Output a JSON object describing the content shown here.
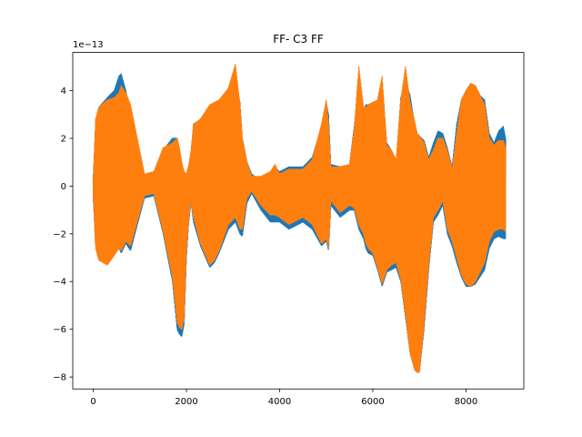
{
  "chart_data": {
    "type": "line",
    "title": "FF- C3 FF",
    "xlabel": "",
    "ylabel": "",
    "y_offset_label": "1e−13",
    "xlim": [
      -440,
      9240
    ],
    "ylim": [
      -8.5,
      5.6
    ],
    "x_ticks": [
      0,
      2000,
      4000,
      6000,
      8000
    ],
    "x_tick_labels": [
      "0",
      "2000",
      "4000",
      "6000",
      "8000"
    ],
    "y_ticks": [
      -8,
      -6,
      -4,
      -2,
      0,
      2,
      4
    ],
    "y_tick_labels": [
      "−8",
      "−6",
      "−4",
      "−2",
      "0",
      "2",
      "4"
    ],
    "grid": false,
    "legend": "none",
    "series": [
      {
        "color": "#1f77b4",
        "envelope": {
          "x": [
            0,
            50,
            120,
            300,
            450,
            550,
            600,
            700,
            800,
            1100,
            1300,
            1500,
            1700,
            1800,
            1850,
            1900,
            1950,
            2000,
            2050,
            2100,
            2150,
            2300,
            2500,
            2600,
            2700,
            2900,
            3050,
            3150,
            3200,
            3300,
            3400,
            3600,
            3800,
            3900,
            4000,
            4200,
            4500,
            4700,
            4900,
            5000,
            5050,
            5100,
            5300,
            5500,
            5600,
            5700,
            5800,
            5850,
            5900,
            6000,
            6100,
            6200,
            6300,
            6400,
            6500,
            6600,
            6700,
            6800,
            6900,
            6950,
            7000,
            7100,
            7200,
            7300,
            7400,
            7500,
            7600,
            7700,
            7800,
            7900,
            8000,
            8100,
            8200,
            8300,
            8400,
            8500,
            8600,
            8700,
            8800,
            8850
          ],
          "upper": [
            0.5,
            2.5,
            3.3,
            3.7,
            4.0,
            4.6,
            4.7,
            4.0,
            3.0,
            0.5,
            0.5,
            1.5,
            2.0,
            2.0,
            1.5,
            0.8,
            0.5,
            0.5,
            0.8,
            1.5,
            2.5,
            2.8,
            3.3,
            3.4,
            3.5,
            4.0,
            4.5,
            3.5,
            2.0,
            1.0,
            0.5,
            0.2,
            0.5,
            0.8,
            0.6,
            0.8,
            0.8,
            1.2,
            2.5,
            3.5,
            3.0,
            0.9,
            0.8,
            0.9,
            2.5,
            4.3,
            3.2,
            3.4,
            3.4,
            3.5,
            3.6,
            4.3,
            1.8,
            1.5,
            1.0,
            3.7,
            4.4,
            3.8,
            2.6,
            2.2,
            2.1,
            1.9,
            1.2,
            1.8,
            2.3,
            2.2,
            1.6,
            0.8,
            2.6,
            3.6,
            4.0,
            4.3,
            4.2,
            3.8,
            3.6,
            2.2,
            1.8,
            2.3,
            2.5,
            2.0
          ],
          "lower": [
            -0.5,
            -2.4,
            -3.0,
            -3.2,
            -2.8,
            -2.6,
            -2.8,
            -2.4,
            -2.7,
            -0.5,
            -0.4,
            -2.0,
            -4.0,
            -6.0,
            -6.2,
            -6.3,
            -5.8,
            -3.0,
            -1.5,
            -0.7,
            -1.5,
            -2.5,
            -3.4,
            -3.2,
            -2.8,
            -1.8,
            -1.5,
            -2.0,
            -2.1,
            -0.7,
            -0.3,
            -1.0,
            -1.5,
            -1.5,
            -1.5,
            -1.8,
            -1.5,
            -1.8,
            -2.5,
            -2.3,
            -2.7,
            -0.8,
            -1.3,
            -1.0,
            -1.0,
            -1.8,
            -2.2,
            -2.6,
            -2.8,
            -2.9,
            -3.5,
            -4.2,
            -3.6,
            -3.5,
            -3.4,
            -4.0,
            -5.5,
            -7.0,
            -7.7,
            -7.8,
            -7.8,
            -6.0,
            -3.5,
            -1.5,
            -1.2,
            -0.8,
            -2.0,
            -2.5,
            -3.2,
            -3.8,
            -4.2,
            -4.2,
            -4.1,
            -3.8,
            -3.5,
            -2.6,
            -2.2,
            -2.1,
            -2.2,
            -2.2
          ]
        }
      },
      {
        "color": "#ff7f0e",
        "envelope": {
          "x": [
            0,
            50,
            120,
            300,
            450,
            550,
            600,
            700,
            800,
            1100,
            1300,
            1500,
            1700,
            1800,
            1850,
            1900,
            1950,
            2000,
            2050,
            2100,
            2150,
            2300,
            2500,
            2600,
            2700,
            2900,
            3050,
            3150,
            3200,
            3300,
            3400,
            3600,
            3800,
            3900,
            4000,
            4200,
            4500,
            4700,
            4900,
            5000,
            5050,
            5100,
            5300,
            5500,
            5600,
            5700,
            5800,
            5850,
            5900,
            6000,
            6100,
            6200,
            6300,
            6400,
            6500,
            6600,
            6700,
            6800,
            6900,
            6950,
            7000,
            7100,
            7200,
            7300,
            7400,
            7500,
            7600,
            7700,
            7800,
            7900,
            8000,
            8100,
            8200,
            8300,
            8400,
            8500,
            8600,
            8700,
            8800,
            8850
          ],
          "upper": [
            0.4,
            2.8,
            3.3,
            3.6,
            3.7,
            3.9,
            4.2,
            3.9,
            3.4,
            0.5,
            0.6,
            1.6,
            1.8,
            2.0,
            1.6,
            1.0,
            0.6,
            0.5,
            0.9,
            1.5,
            2.6,
            2.8,
            3.4,
            3.5,
            3.6,
            4.1,
            5.1,
            3.4,
            2.0,
            1.0,
            0.4,
            0.4,
            0.6,
            0.9,
            0.5,
            0.7,
            0.7,
            1.1,
            2.6,
            3.6,
            2.6,
            0.8,
            0.8,
            0.9,
            2.4,
            5.0,
            3.3,
            3.3,
            3.4,
            3.5,
            3.6,
            4.6,
            1.7,
            1.5,
            1.1,
            3.6,
            5.0,
            3.5,
            2.7,
            2.2,
            2.1,
            1.8,
            1.1,
            1.5,
            2.0,
            2.0,
            1.5,
            0.7,
            2.2,
            3.6,
            4.0,
            4.3,
            4.2,
            3.8,
            3.4,
            2.0,
            1.7,
            1.9,
            1.9,
            1.6
          ],
          "lower": [
            -0.4,
            -2.6,
            -3.1,
            -3.3,
            -2.9,
            -2.6,
            -2.7,
            -2.3,
            -2.5,
            -0.4,
            -0.3,
            -1.9,
            -3.8,
            -5.7,
            -5.9,
            -6.0,
            -5.5,
            -2.8,
            -1.4,
            -0.6,
            -1.3,
            -2.4,
            -3.3,
            -3.1,
            -2.7,
            -1.6,
            -1.3,
            -1.8,
            -1.8,
            -0.5,
            -0.2,
            -0.8,
            -1.2,
            -1.2,
            -1.3,
            -1.6,
            -1.3,
            -1.6,
            -2.4,
            -2.2,
            -2.6,
            -0.6,
            -1.1,
            -0.8,
            -0.9,
            -1.6,
            -2.0,
            -2.4,
            -2.6,
            -2.8,
            -3.4,
            -4.1,
            -3.5,
            -3.3,
            -3.2,
            -3.9,
            -5.4,
            -7.0,
            -7.7,
            -7.8,
            -7.8,
            -5.8,
            -3.3,
            -1.3,
            -1.0,
            -0.6,
            -1.8,
            -2.3,
            -3.0,
            -3.7,
            -4.1,
            -4.2,
            -4.0,
            -3.6,
            -3.2,
            -2.3,
            -1.9,
            -1.8,
            -1.8,
            -1.9
          ]
        }
      }
    ]
  }
}
